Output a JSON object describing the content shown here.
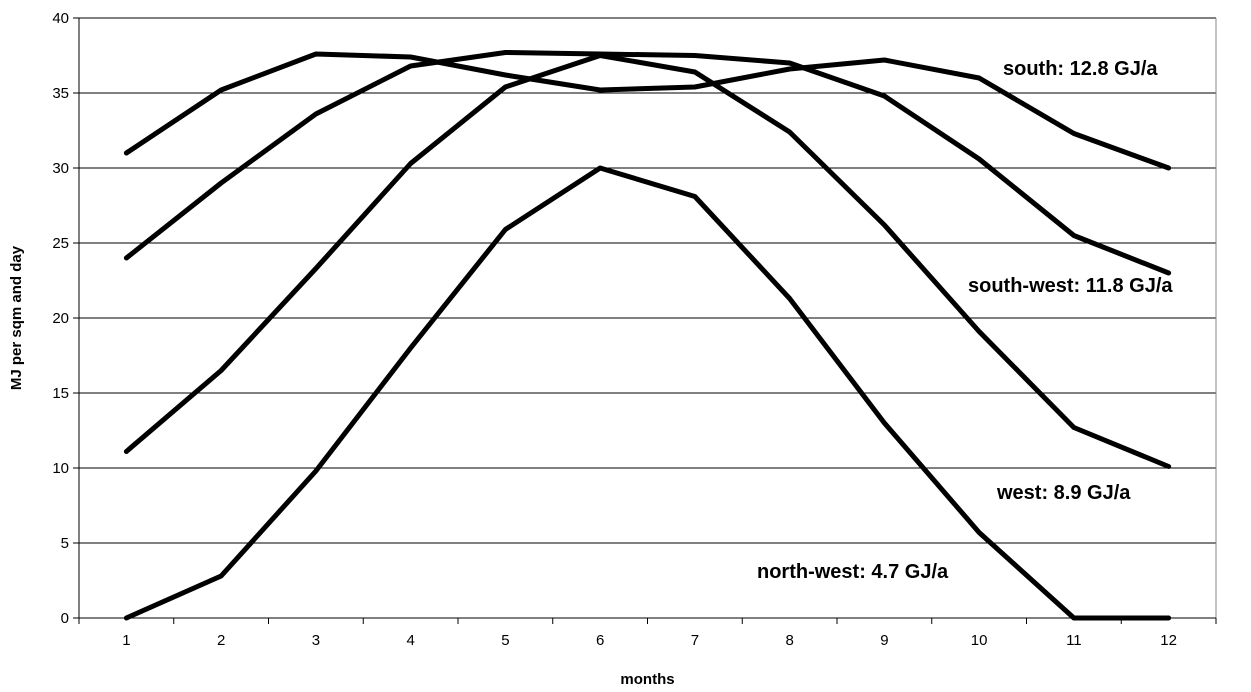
{
  "chart_data": {
    "type": "line",
    "title": "",
    "xlabel": "months",
    "ylabel": "MJ per sqm and day",
    "x": [
      1,
      2,
      3,
      4,
      5,
      6,
      7,
      8,
      9,
      10,
      11,
      12
    ],
    "xlim": [
      0.5,
      12.5
    ],
    "ylim": [
      0,
      40
    ],
    "yticks": [
      0,
      5,
      10,
      15,
      20,
      25,
      30,
      35,
      40
    ],
    "grid": "horizontal",
    "legend": "none",
    "line_color": "#000000",
    "series": [
      {
        "name": "south: 12.8 GJ/a",
        "values": [
          31.0,
          35.2,
          37.6,
          37.4,
          36.2,
          35.2,
          35.4,
          36.6,
          37.2,
          36.0,
          32.3,
          30.0
        ]
      },
      {
        "name": "south-west: 11.8 GJ/a",
        "values": [
          24.0,
          29.0,
          33.6,
          36.8,
          37.7,
          37.6,
          37.5,
          37.0,
          34.8,
          30.6,
          25.5,
          23.0
        ]
      },
      {
        "name": "west: 8.9 GJ/a",
        "values": [
          11.1,
          16.5,
          23.3,
          30.3,
          35.4,
          37.5,
          36.4,
          32.4,
          26.2,
          19.1,
          12.7,
          10.1
        ]
      },
      {
        "name": "north-west: 4.7 GJ/a",
        "values": [
          0.0,
          2.8,
          9.8,
          18.0,
          25.9,
          30.0,
          28.1,
          21.3,
          13.0,
          5.7,
          0.0,
          0.0
        ]
      }
    ]
  }
}
